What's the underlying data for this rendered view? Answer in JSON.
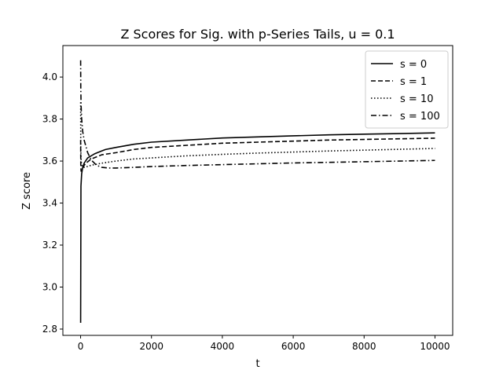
{
  "chart_data": {
    "type": "line",
    "title": "Z Scores for Sig. with p-Series Tails, u = 0.1",
    "xlabel": "t",
    "ylabel": "Z score",
    "xlim": [
      -500,
      10500
    ],
    "ylim": [
      2.77,
      4.15
    ],
    "xticks": [
      0,
      2000,
      4000,
      6000,
      8000,
      10000
    ],
    "xtick_labels": [
      "0",
      "2000",
      "4000",
      "6000",
      "8000",
      "10000"
    ],
    "yticks": [
      2.8,
      3.0,
      3.2,
      3.4,
      3.6,
      3.8,
      4.0
    ],
    "ytick_labels": [
      "2.8",
      "3.0",
      "3.2",
      "3.4",
      "3.6",
      "3.8",
      "4.0"
    ],
    "grid": false,
    "legend_position": "top-right",
    "colors": {
      "line": "#000000",
      "axes": "#000000",
      "background": "#ffffff"
    },
    "series": [
      {
        "name": "s = 0",
        "style": "solid",
        "x": [
          1,
          10,
          30,
          60,
          100,
          200,
          400,
          700,
          1000,
          1500,
          2000,
          3000,
          4000,
          5000,
          6000,
          7000,
          8000,
          9000,
          10000
        ],
        "y": [
          2.83,
          3.48,
          3.54,
          3.57,
          3.59,
          3.615,
          3.635,
          3.655,
          3.665,
          3.68,
          3.69,
          3.7,
          3.71,
          3.715,
          3.72,
          3.725,
          3.728,
          3.731,
          3.734
        ]
      },
      {
        "name": "s = 1",
        "style": "dashed",
        "x": [
          1,
          5,
          15,
          40,
          80,
          150,
          300,
          600,
          1000,
          1500,
          2000,
          3000,
          4000,
          5000,
          6000,
          7000,
          8000,
          9000,
          10000
        ],
        "y": [
          3.7,
          3.58,
          3.55,
          3.56,
          3.575,
          3.59,
          3.61,
          3.63,
          3.64,
          3.655,
          3.665,
          3.675,
          3.685,
          3.69,
          3.695,
          3.7,
          3.703,
          3.706,
          3.709
        ]
      },
      {
        "name": "s = 10",
        "style": "dotted",
        "x": [
          1,
          5,
          15,
          40,
          80,
          150,
          300,
          600,
          1000,
          1500,
          2000,
          3000,
          4000,
          5000,
          6000,
          7000,
          8000,
          9000,
          10000
        ],
        "y": [
          3.88,
          3.66,
          3.6,
          3.575,
          3.57,
          3.572,
          3.58,
          3.59,
          3.6,
          3.61,
          3.615,
          3.625,
          3.632,
          3.638,
          3.643,
          3.648,
          3.652,
          3.656,
          3.66
        ]
      },
      {
        "name": "s = 100",
        "style": "dashdot",
        "x": [
          1,
          5,
          15,
          30,
          60,
          100,
          200,
          300,
          450,
          600,
          800,
          1000,
          1500,
          2000,
          3000,
          4000,
          5000,
          6000,
          7000,
          8000,
          9000,
          10000
        ],
        "y": [
          4.08,
          3.95,
          3.86,
          3.8,
          3.74,
          3.7,
          3.64,
          3.605,
          3.58,
          3.57,
          3.567,
          3.567,
          3.57,
          3.574,
          3.579,
          3.583,
          3.587,
          3.591,
          3.594,
          3.597,
          3.6,
          3.603
        ]
      }
    ]
  }
}
